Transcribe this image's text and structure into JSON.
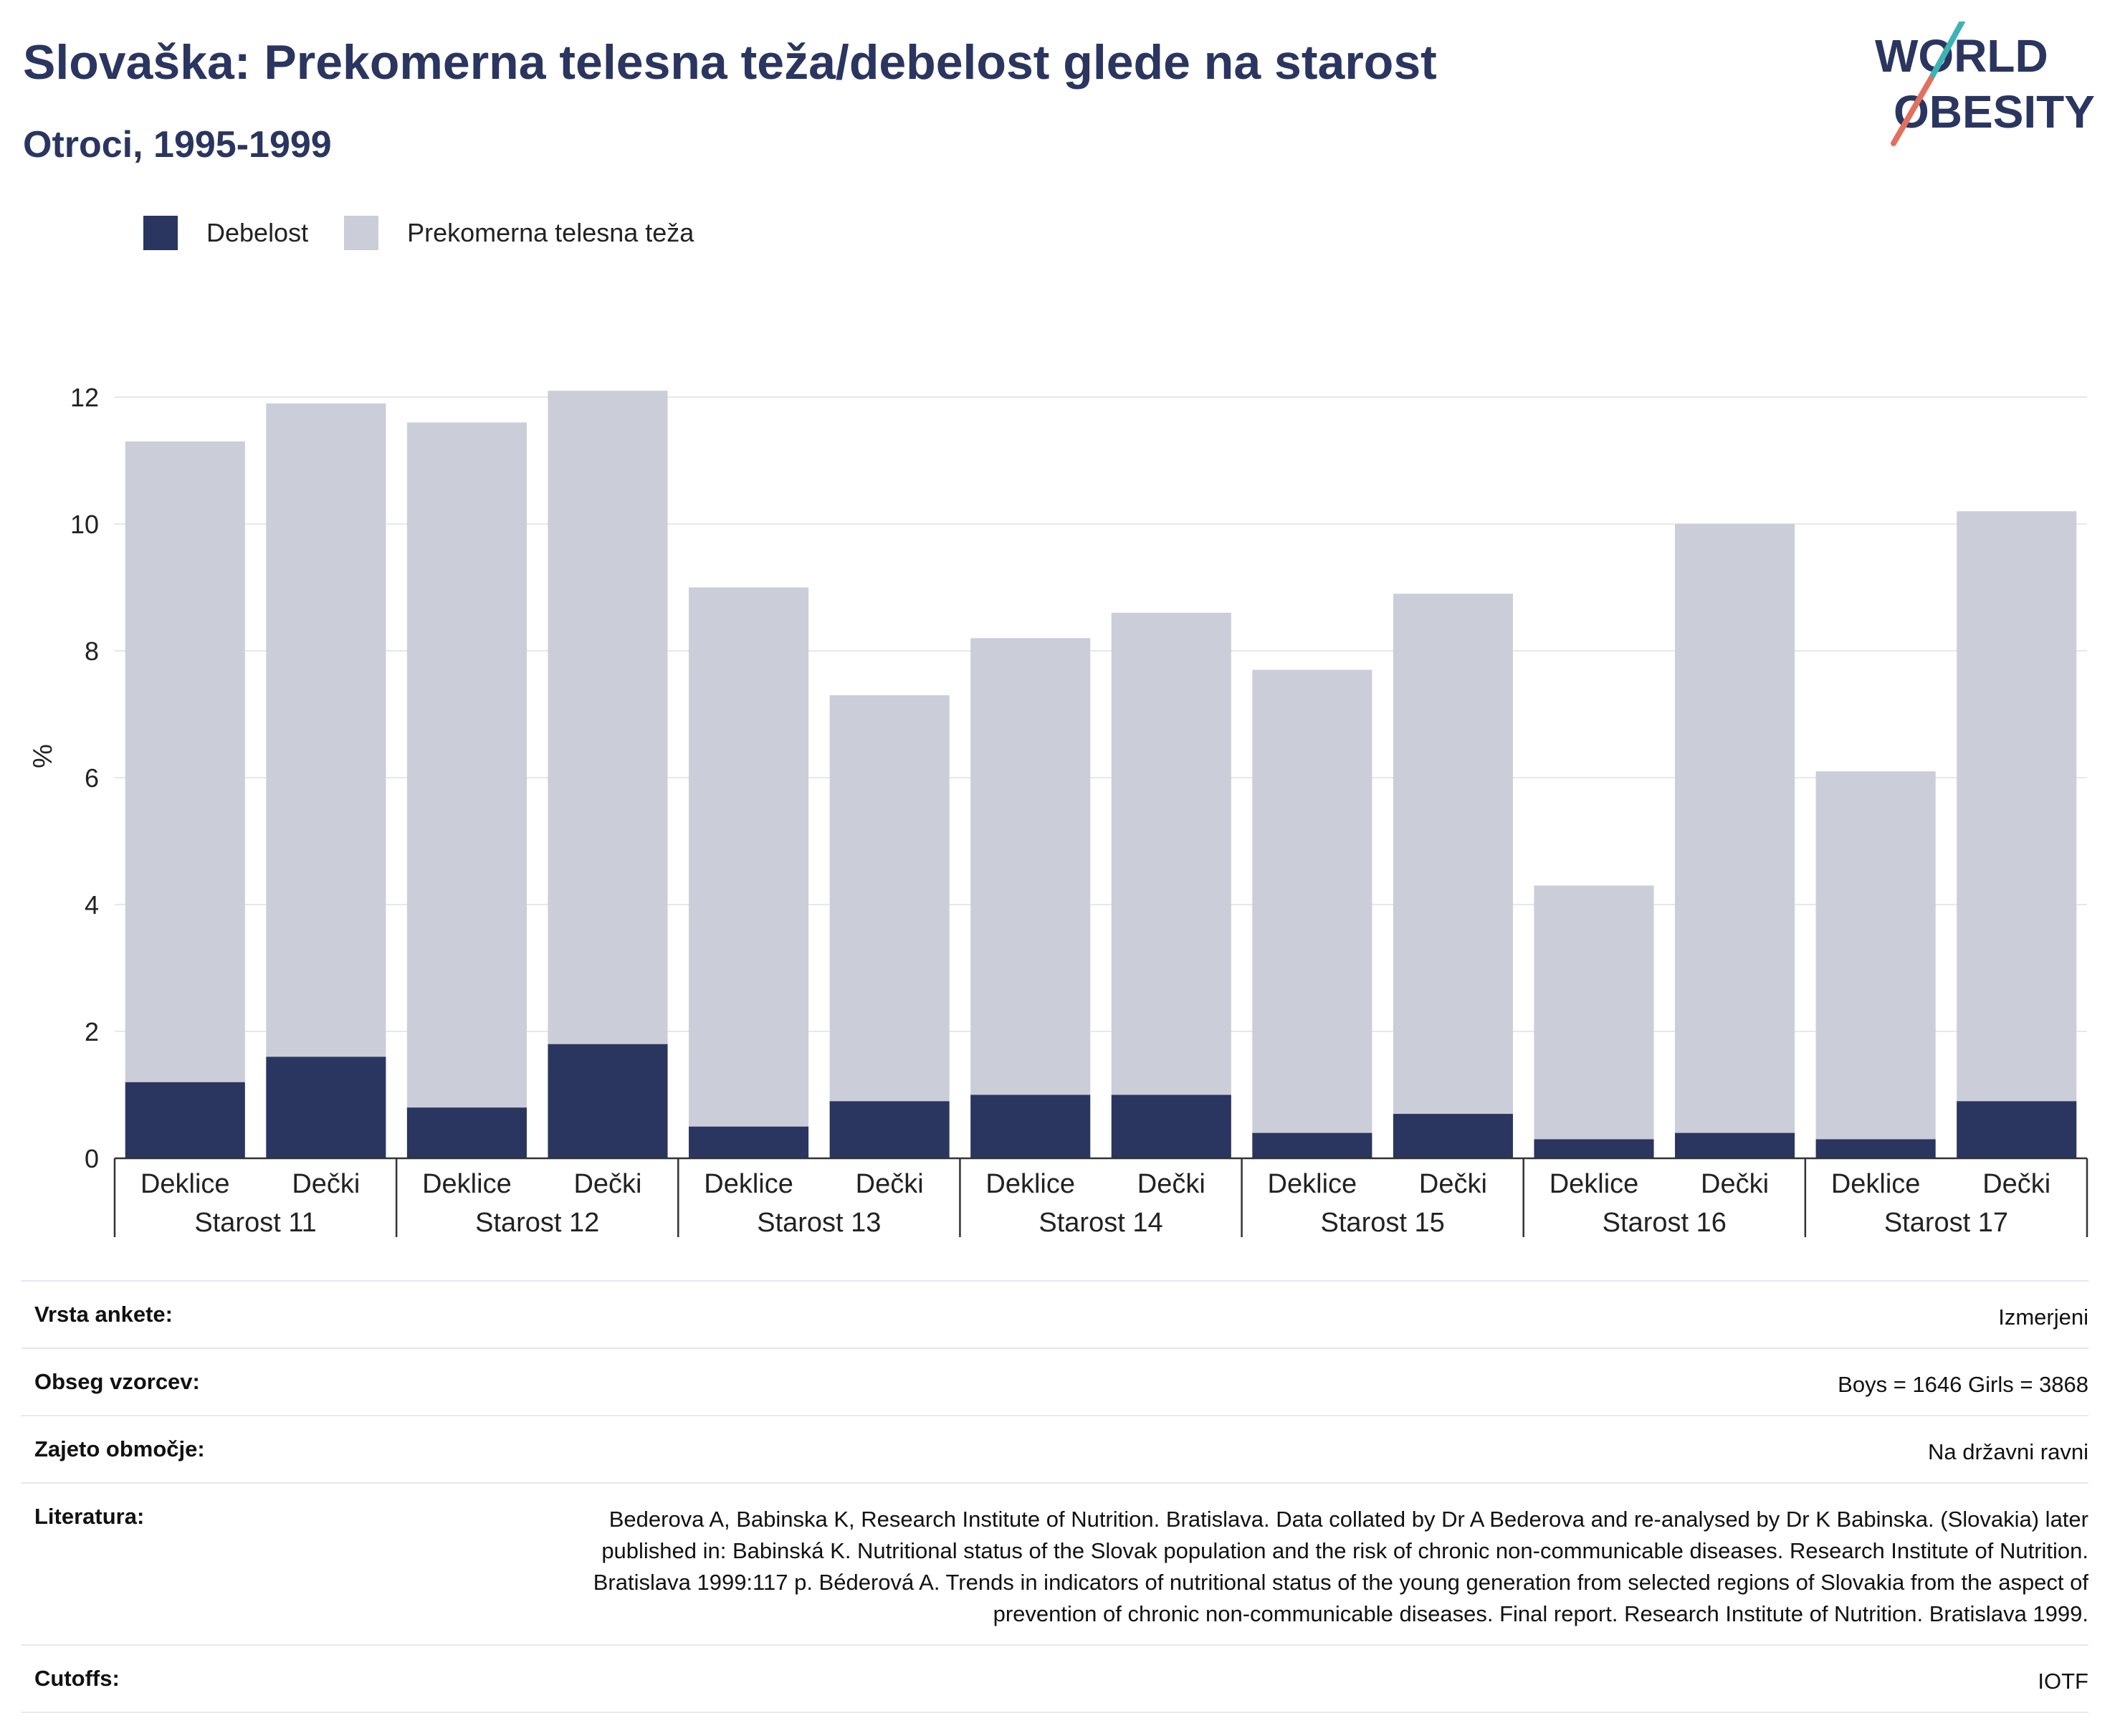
{
  "title": "Slovaška: Prekomerna telesna teža/debelost glede na starost",
  "subtitle": "Otroci, 1995-1999",
  "logo": {
    "line1": "WORLD",
    "line2": "OBESITY"
  },
  "colors": {
    "obese": "#2a3560",
    "overweight": "#cbcdd8",
    "grid": "#e6e8f0",
    "axis": "#333333",
    "text": "#222222"
  },
  "legend": [
    {
      "label": "Debelost",
      "color": "#2a3560"
    },
    {
      "label": "Prekomerna telesna teža",
      "color": "#cbcdd8"
    }
  ],
  "chart_data": {
    "type": "bar",
    "stacked": true,
    "ylabel": "%",
    "ylim": [
      0,
      12
    ],
    "yticks": [
      0,
      2,
      4,
      6,
      8,
      10,
      12
    ],
    "grid": true,
    "legend_position": "top-left",
    "groups": [
      "Starost 11",
      "Starost 12",
      "Starost 13",
      "Starost 14",
      "Starost 15",
      "Starost 16",
      "Starost 17"
    ],
    "subcategories": [
      "Deklice",
      "Dečki"
    ],
    "series": [
      {
        "name": "Debelost",
        "values": [
          1.2,
          1.6,
          0.8,
          1.8,
          0.5,
          0.9,
          1.0,
          1.0,
          0.4,
          0.7,
          0.3,
          0.4,
          0.3,
          0.9
        ]
      },
      {
        "name": "Prekomerna telesna teža",
        "values": [
          10.1,
          10.3,
          10.8,
          10.3,
          8.5,
          6.4,
          7.2,
          7.6,
          7.3,
          8.2,
          4.0,
          9.6,
          5.8,
          9.3
        ]
      }
    ]
  },
  "info": [
    {
      "label": "Vrsta ankete:",
      "value": "Izmerjeni"
    },
    {
      "label": "Obseg vzorcev:",
      "value": "Boys = 1646 Girls = 3868"
    },
    {
      "label": "Zajeto območje:",
      "value": "Na državni ravni"
    },
    {
      "label": "Literatura:",
      "value": "Bederova A, Babinska K, Research Institute of Nutrition. Bratislava. Data collated by Dr A Bederova and re-analysed by Dr K Babinska. (Slovakia) later published in: Babinská K. Nutritional status of the Slovak population and the risk of chronic non-communicable diseases. Research Institute of Nutrition. Bratislava 1999:117 p. Béderová A. Trends in indicators of nutritional status of the young generation from selected regions of Slovakia from the aspect of prevention of chronic non-communicable diseases. Final report. Research Institute of Nutrition. Bratislava 1999."
    },
    {
      "label": "Cutoffs:",
      "value": "IOTF"
    }
  ]
}
